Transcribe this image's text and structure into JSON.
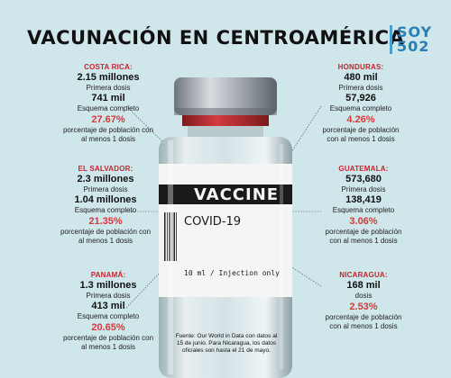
{
  "title": "VACUNACIÓN EN CENTROAMÉRICA",
  "brand": {
    "line1": "SOY",
    "line2": "502"
  },
  "vial": {
    "label": "VACCINE",
    "product": "COVID-19",
    "dose_text": "10 ml  /  Injection only"
  },
  "countries": {
    "costa_rica": {
      "name": "COSTA RICA:",
      "first": "2.15 millones",
      "first_label": "Primera dosis",
      "full": "741 mil",
      "full_label": "Esquema completo",
      "pct": "27.67%",
      "pct_label_1": "porcentaje de población con",
      "pct_label_2": "al menos 1 dosis"
    },
    "el_salvador": {
      "name": "EL SALVADOR:",
      "first": "2.3 millones",
      "first_label": "Primera dosis",
      "full": "1.04 millones",
      "full_label": "Esquema completo",
      "pct": "21.35%",
      "pct_label_1": "porcentaje de población con",
      "pct_label_2": "al menos 1 dosis"
    },
    "panama": {
      "name": "PANAMÁ:",
      "first": "1.3 millones",
      "first_label": "Primera dosis",
      "full": "413 mil",
      "full_label": "Esquema completo",
      "pct": "20.65%",
      "pct_label_1": "porcentaje de población con",
      "pct_label_2": "al menos 1 dosis"
    },
    "honduras": {
      "name": "HONDURAS:",
      "first": "480 mil",
      "first_label": "Primera dosis",
      "full": "57,926",
      "full_label": "Esquema completo",
      "pct": "4.26%",
      "pct_label_1": "porcentaje de población",
      "pct_label_2": "con al menos 1 dosis"
    },
    "guatemala": {
      "name": "GUATEMALA:",
      "first": "573,680",
      "first_label": "Primera dosis",
      "full": "138,419",
      "full_label": "Esquema completo",
      "pct": "3.06%",
      "pct_label_1": "porcentaje de población",
      "pct_label_2": "con al menos 1 dosis"
    },
    "nicaragua": {
      "name": "NICARAGUA:",
      "first": "168 mil",
      "first_label": "dosis",
      "pct": "2.53%",
      "pct_label_1": "porcentaje de población",
      "pct_label_2": "con al menos 1 dosis"
    }
  },
  "source": {
    "line1": "Fuente: Our World in Data con datos al",
    "line2": "15 de junio. Para Nicaragua, los datos",
    "line3": "oficiales son hasta el 21 de mayo."
  },
  "colors": {
    "background": "#cfe6ea",
    "accent_red": "#d83a3a",
    "country_red": "#c7252e",
    "brand_blue": "#2a7fb6"
  }
}
